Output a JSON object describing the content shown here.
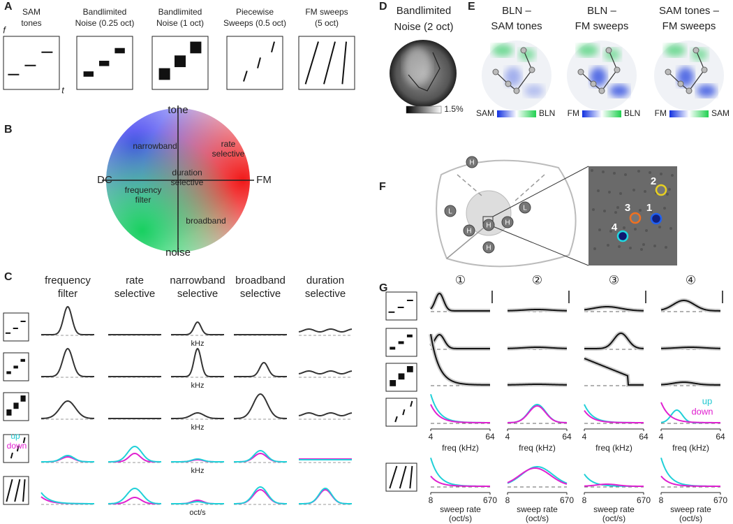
{
  "panel_a": {
    "label": "A",
    "axis_f": "f",
    "axis_t": "t",
    "stimuli": [
      [
        "SAM",
        "tones"
      ],
      [
        "Bandlimited",
        "Noise (0.25 oct)"
      ],
      [
        "Bandlimited",
        "Noise (1 oct)"
      ],
      [
        "Piecewise",
        "Sweeps (0.5 oct)"
      ],
      [
        "FM sweeps",
        "(5 oct)"
      ]
    ]
  },
  "panel_b": {
    "label": "B",
    "top": "tone",
    "bottom": "noise",
    "left": "DC",
    "right": "FM",
    "regions": [
      [
        "narrowband"
      ],
      [
        "rate",
        "selective"
      ],
      [
        "duration",
        "selective"
      ],
      [
        "frequency",
        "filter"
      ],
      [
        "broadband"
      ]
    ]
  },
  "panel_c": {
    "label": "C",
    "columns": [
      [
        "frequency",
        "filter"
      ],
      [
        "rate",
        "selective"
      ],
      [
        "narrowband",
        "selective"
      ],
      [
        "broadband",
        "selective"
      ],
      [
        "duration",
        "selective"
      ]
    ],
    "x_units": [
      "kHz",
      "kHz",
      "kHz",
      "kHz",
      "oct/s"
    ],
    "legend": [
      "up",
      "down"
    ]
  },
  "panel_d": {
    "label": "D",
    "title": [
      "Bandlimited",
      "Noise (2 oct)"
    ],
    "scale_max": "1.5%"
  },
  "panel_e": {
    "label": "E",
    "maps": [
      {
        "title": [
          "BLN –",
          "SAM tones"
        ],
        "low": "SAM",
        "high": "BLN"
      },
      {
        "title": [
          "BLN –",
          "FM sweeps"
        ],
        "low": "FM",
        "high": "BLN"
      },
      {
        "title": [
          "SAM tones –",
          "FM sweeps"
        ],
        "low": "FM",
        "high": "SAM"
      }
    ]
  },
  "panel_f": {
    "label": "F",
    "areas": [
      "H",
      "L",
      "H",
      "H",
      "L",
      "H",
      "H"
    ],
    "cells": [
      "2",
      "3",
      "1",
      "4"
    ]
  },
  "panel_g": {
    "label": "G",
    "cells": [
      "①",
      "②",
      "③",
      "④"
    ],
    "freq_label": "freq (kHz)",
    "freq_ticks": [
      4,
      64
    ],
    "rate_label": [
      "sweep rate",
      "(oct/s)"
    ],
    "rate_ticks": [
      8,
      670
    ],
    "legend": [
      "up",
      "down"
    ]
  }
}
